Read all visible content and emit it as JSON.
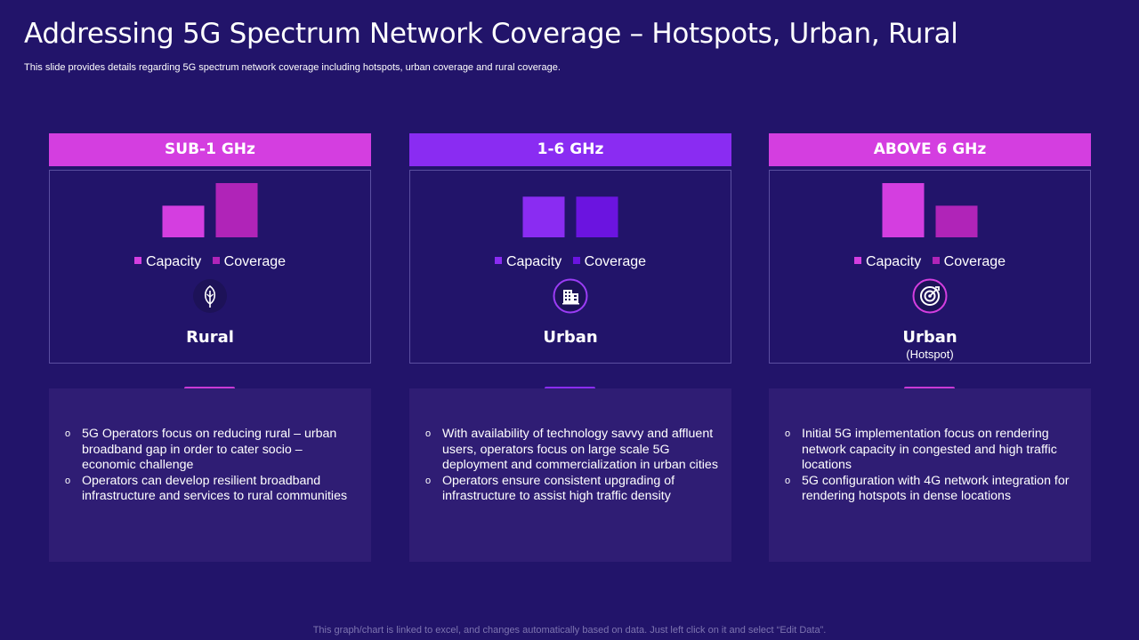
{
  "title": "Addressing 5G Spectrum Network Coverage – Hotspots, Urban, Rural",
  "subtitle": "This slide provides details regarding 5G spectrum network coverage including hotspots, urban coverage and rural coverage.",
  "footer": "This graph/chart is linked to excel,  and changes automatically based on data. Just left click on it and select “Edit Data”.",
  "columns": [
    {
      "header": "SUB-1 GHz",
      "header_color": "#d43ee0",
      "accent_color": "#c93ad6",
      "location": "Rural",
      "location_sub": "",
      "icon": "leaf-icon",
      "bullets": [
        "5G Operators focus on reducing rural – urban broadband gap in order to cater socio – economic challenge",
        "Operators can develop resilient broadband infrastructure and services to rural communities"
      ]
    },
    {
      "header": "1-6 GHz",
      "header_color": "#8a2cf2",
      "accent_color": "#8a2cf2",
      "location": "Urban",
      "location_sub": "",
      "icon": "building-icon",
      "bullets": [
        "With availability  of technology savvy and affluent users, operators focus on large scale 5G deployment and commercialization in urban cities",
        "Operators ensure consistent upgrading of infrastructure to assist high traffic density"
      ]
    },
    {
      "header": "ABOVE 6 GHz",
      "header_color": "#d43ee0",
      "accent_color": "#c93ad6",
      "location": "Urban",
      "location_sub": "(Hotspot)",
      "icon": "target-icon",
      "bullets": [
        "Initial 5G implementation focus on rendering network capacity in congested and high traffic locations",
        "5G configuration with 4G network integration for rendering hotspots in dense locations"
      ]
    }
  ],
  "chart_data": [
    {
      "type": "bar",
      "series": [
        {
          "name": "Capacity",
          "values": [
            3.5
          ],
          "color": "#d43ee0"
        },
        {
          "name": "Coverage",
          "values": [
            6
          ],
          "color": "#b024b8"
        }
      ],
      "ylim": [
        0,
        6
      ]
    },
    {
      "type": "bar",
      "series": [
        {
          "name": "Capacity",
          "values": [
            4.5
          ],
          "color": "#8a2cf2"
        },
        {
          "name": "Coverage",
          "values": [
            4.5
          ],
          "color": "#6b14e0"
        }
      ],
      "ylim": [
        0,
        6
      ]
    },
    {
      "type": "bar",
      "series": [
        {
          "name": "Capacity",
          "values": [
            6
          ],
          "color": "#d43ee0"
        },
        {
          "name": "Coverage",
          "values": [
            3.5
          ],
          "color": "#b024b8"
        }
      ],
      "ylim": [
        0,
        6
      ]
    }
  ]
}
